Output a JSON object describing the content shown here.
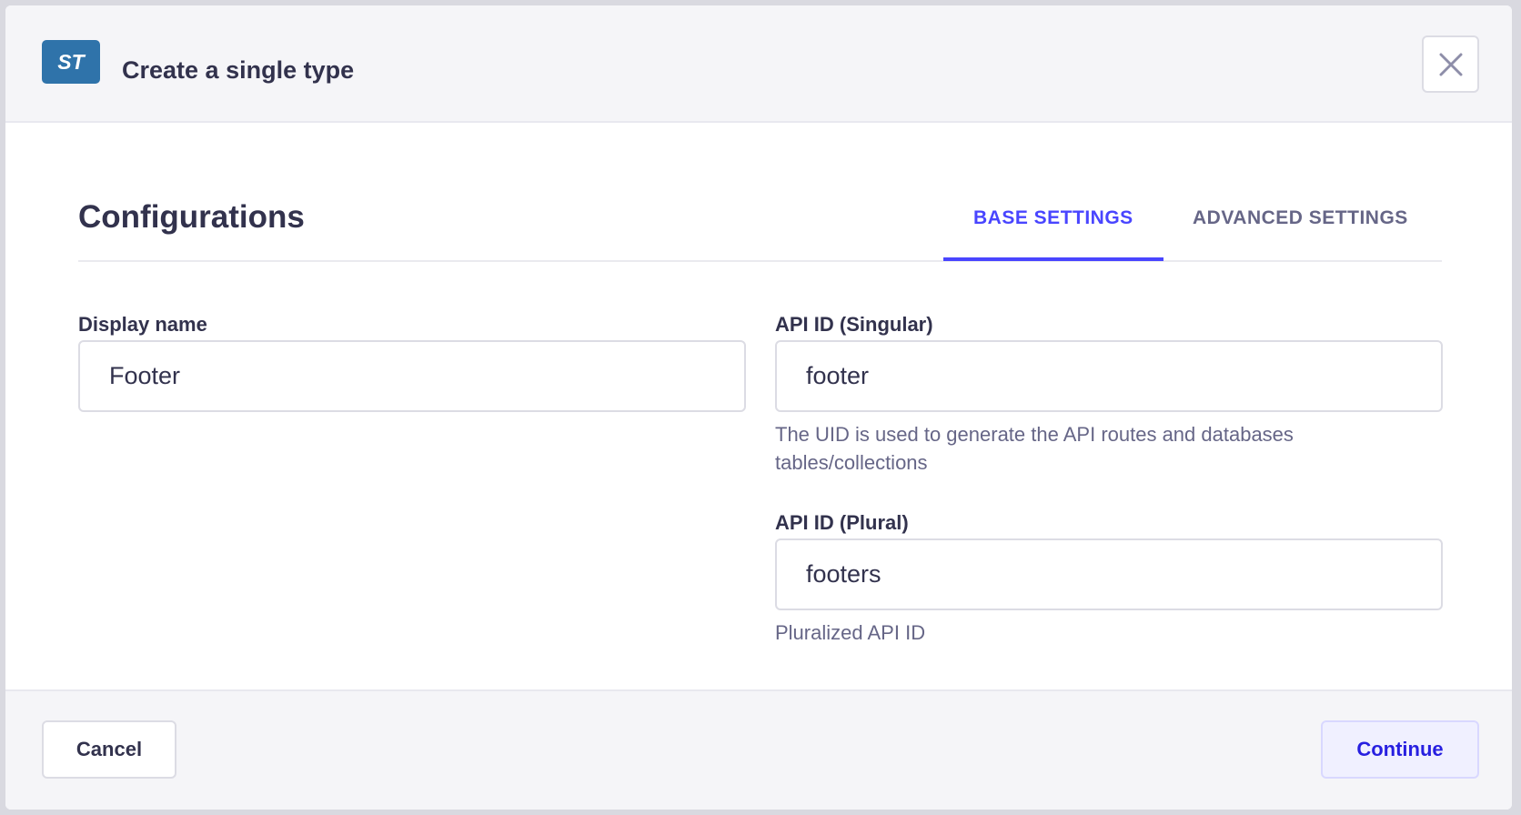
{
  "header": {
    "badge": "ST",
    "title": "Create a single type"
  },
  "main": {
    "heading": "Configurations",
    "tabs": [
      {
        "label": "BASE SETTINGS",
        "active": true
      },
      {
        "label": "ADVANCED SETTINGS",
        "active": false
      }
    ]
  },
  "form": {
    "display_name": {
      "label": "Display name",
      "value": "Footer"
    },
    "singular": {
      "label": "API ID (Singular)",
      "value": "footer",
      "hint": "The UID is used to generate the API routes and databases tables/collections"
    },
    "plural": {
      "label": "API ID (Plural)",
      "value": "footers",
      "hint": "Pluralized API ID"
    }
  },
  "footer": {
    "cancel": "Cancel",
    "continue": "Continue"
  },
  "colors": {
    "accent": "#4945ff",
    "badge": "#2f73aa"
  }
}
